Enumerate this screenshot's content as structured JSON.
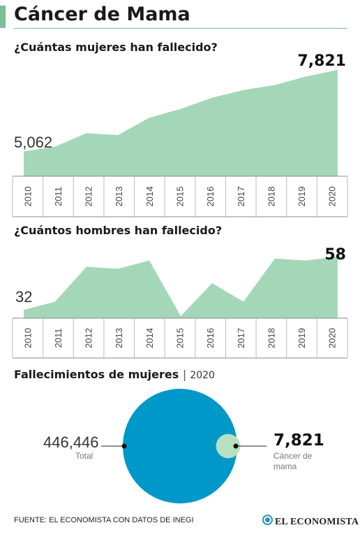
{
  "header": {
    "title": "Cáncer de Mama",
    "accent_color": "#7bbf98"
  },
  "footer": {
    "source": "FUENTE: EL ECONOMISTA CON DATOS DE INEGI",
    "logo_text": "EL ECONOMISTA",
    "logo_color": "#2a8fbd"
  },
  "chart_data": [
    {
      "type": "area",
      "title": "¿Cuántas mujeres han fallecido?",
      "x": [
        "2010",
        "2011",
        "2012",
        "2013",
        "2014",
        "2015",
        "2016",
        "2017",
        "2018",
        "2019",
        "2020"
      ],
      "series": [
        {
          "values": [
            5062,
            5220,
            5680,
            5610,
            6200,
            6500,
            6880,
            7140,
            7310,
            7600,
            7821
          ]
        }
      ],
      "ylim": [
        4220,
        7821
      ],
      "start_label": "5,062",
      "end_label": "7,821",
      "color": "#a4d7b8",
      "grid": false
    },
    {
      "type": "area",
      "title": "¿Cuántos hombres han fallecido?",
      "x": [
        "2010",
        "2011",
        "2012",
        "2013",
        "2014",
        "2015",
        "2016",
        "2017",
        "2018",
        "2019",
        "2020"
      ],
      "series": [
        {
          "values": [
            32,
            36,
            53,
            52,
            56,
            29,
            45,
            36,
            57,
            56,
            58
          ]
        }
      ],
      "ylim": [
        28,
        62
      ],
      "start_label": "32",
      "end_label": "58",
      "color": "#a4d7b8",
      "grid": false
    },
    {
      "type": "pie",
      "title": "Fallecimientos de mujeres",
      "subtitle": "2020",
      "total": {
        "value": 446446,
        "value_label": "446,446",
        "label": "Total",
        "color": "#0098c8"
      },
      "part": {
        "value": 7821,
        "value_label": "7,821",
        "label": "Cáncer de mama",
        "color": "#b7e1c2"
      }
    }
  ]
}
